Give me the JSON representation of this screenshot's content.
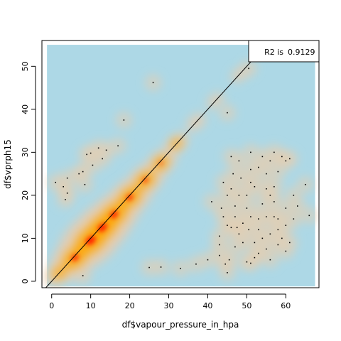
{
  "chart_data": {
    "type": "scatter",
    "subtype": "smoothed-density-scatter",
    "title": "",
    "xlabel": "df$vapour_pressure_in_hpa",
    "ylabel": "df$vprph15",
    "xlim": [
      -2.5,
      68.5
    ],
    "ylim": [
      -1.5,
      56
    ],
    "x_ticks": [
      0,
      10,
      20,
      30,
      40,
      50,
      60
    ],
    "y_ticks": [
      0,
      10,
      20,
      30,
      40,
      50
    ],
    "grid": false,
    "background_color": "#ADD8E6",
    "density_colors": [
      "#ADD8E6",
      "#E5CDB0",
      "#FFA500",
      "#FF0000"
    ],
    "point_color": "#000000",
    "annotation": {
      "position": "top-right",
      "label": "R2 is",
      "value": "0.9129"
    },
    "reference_line": {
      "type": "identity",
      "slope": 1,
      "intercept": 0
    },
    "density_ridge": [
      {
        "x": 2,
        "y": 2,
        "w": 1.3
      },
      {
        "x": 6,
        "y": 5.5,
        "w": 3.2
      },
      {
        "x": 10,
        "y": 9.5,
        "w": 4.6
      },
      {
        "x": 13,
        "y": 12.5,
        "w": 4.3
      },
      {
        "x": 16,
        "y": 15.5,
        "w": 3.6
      },
      {
        "x": 20,
        "y": 19.5,
        "w": 2.9
      },
      {
        "x": 24,
        "y": 23.5,
        "w": 2.2
      },
      {
        "x": 28,
        "y": 27.5,
        "w": 1.5
      },
      {
        "x": 32,
        "y": 32,
        "w": 0.8
      },
      {
        "x": 37,
        "y": 37,
        "w": 0.4
      },
      {
        "x": 42,
        "y": 42,
        "w": 0.2
      },
      {
        "x": 48,
        "y": 48,
        "w": 0.12
      }
    ],
    "scatter_points": [
      {
        "x": 26,
        "y": 46.2
      },
      {
        "x": 18.5,
        "y": 37.5
      },
      {
        "x": 45,
        "y": 39.2
      },
      {
        "x": 50.5,
        "y": 49.5
      },
      {
        "x": 9,
        "y": 29.5
      },
      {
        "x": 10,
        "y": 29.8
      },
      {
        "x": 12,
        "y": 31
      },
      {
        "x": 14,
        "y": 30.5
      },
      {
        "x": 17,
        "y": 31.5
      },
      {
        "x": 13,
        "y": 28.5
      },
      {
        "x": 10.5,
        "y": 27
      },
      {
        "x": 7,
        "y": 25
      },
      {
        "x": 8,
        "y": 25.5
      },
      {
        "x": 4,
        "y": 24
      },
      {
        "x": 1,
        "y": 23
      },
      {
        "x": 3,
        "y": 22
      },
      {
        "x": 8.5,
        "y": 22.5
      },
      {
        "x": 4,
        "y": 20.5
      },
      {
        "x": 3.5,
        "y": 19
      },
      {
        "x": 8,
        "y": 1.3
      },
      {
        "x": 25,
        "y": 3.2
      },
      {
        "x": 28,
        "y": 3.3
      },
      {
        "x": 33,
        "y": 3
      },
      {
        "x": 37,
        "y": 4
      },
      {
        "x": 40,
        "y": 5
      },
      {
        "x": 43,
        "y": 6
      },
      {
        "x": 45,
        "y": 2
      },
      {
        "x": 45.5,
        "y": 5
      },
      {
        "x": 44.5,
        "y": 4
      },
      {
        "x": 47,
        "y": 8
      },
      {
        "x": 43,
        "y": 8.5
      },
      {
        "x": 49,
        "y": 9
      },
      {
        "x": 50,
        "y": 4.5
      },
      {
        "x": 51,
        "y": 4.2
      },
      {
        "x": 52,
        "y": 5.5
      },
      {
        "x": 53,
        "y": 6.5
      },
      {
        "x": 56,
        "y": 5
      },
      {
        "x": 55,
        "y": 7.5
      },
      {
        "x": 58,
        "y": 8.5
      },
      {
        "x": 60,
        "y": 7
      },
      {
        "x": 54,
        "y": 10
      },
      {
        "x": 48,
        "y": 11
      },
      {
        "x": 46,
        "y": 12.5
      },
      {
        "x": 43,
        "y": 10.5
      },
      {
        "x": 45,
        "y": 13
      },
      {
        "x": 47.5,
        "y": 12.5
      },
      {
        "x": 49,
        "y": 13.5
      },
      {
        "x": 51,
        "y": 15
      },
      {
        "x": 53,
        "y": 14.5
      },
      {
        "x": 55,
        "y": 15
      },
      {
        "x": 57,
        "y": 15
      },
      {
        "x": 58,
        "y": 14.5
      },
      {
        "x": 60,
        "y": 13
      },
      {
        "x": 62,
        "y": 14.5
      },
      {
        "x": 66,
        "y": 15.3
      },
      {
        "x": 63,
        "y": 17.5
      },
      {
        "x": 60,
        "y": 17
      },
      {
        "x": 57,
        "y": 18.5
      },
      {
        "x": 54,
        "y": 18
      },
      {
        "x": 50,
        "y": 17
      },
      {
        "x": 47,
        "y": 17.5
      },
      {
        "x": 43.5,
        "y": 17
      },
      {
        "x": 41,
        "y": 18.5
      },
      {
        "x": 45,
        "y": 20
      },
      {
        "x": 46,
        "y": 21.5
      },
      {
        "x": 48,
        "y": 20
      },
      {
        "x": 50,
        "y": 20
      },
      {
        "x": 52,
        "y": 22
      },
      {
        "x": 55,
        "y": 21.5
      },
      {
        "x": 57,
        "y": 22
      },
      {
        "x": 56,
        "y": 20
      },
      {
        "x": 51,
        "y": 23
      },
      {
        "x": 48.5,
        "y": 24
      },
      {
        "x": 44,
        "y": 23
      },
      {
        "x": 46.5,
        "y": 25
      },
      {
        "x": 51,
        "y": 26
      },
      {
        "x": 53,
        "y": 26.5
      },
      {
        "x": 55,
        "y": 25
      },
      {
        "x": 58,
        "y": 25.5
      },
      {
        "x": 60,
        "y": 28
      },
      {
        "x": 56,
        "y": 28
      },
      {
        "x": 54,
        "y": 29
      },
      {
        "x": 51,
        "y": 30
      },
      {
        "x": 48,
        "y": 28
      },
      {
        "x": 46,
        "y": 29
      },
      {
        "x": 57,
        "y": 30
      },
      {
        "x": 59,
        "y": 29
      },
      {
        "x": 61,
        "y": 28.5
      },
      {
        "x": 62,
        "y": 20
      },
      {
        "x": 65,
        "y": 22.5
      },
      {
        "x": 58,
        "y": 12
      },
      {
        "x": 56,
        "y": 11
      },
      {
        "x": 52,
        "y": 9
      },
      {
        "x": 47,
        "y": 15
      },
      {
        "x": 44,
        "y": 15
      },
      {
        "x": 50.5,
        "y": 12
      },
      {
        "x": 53,
        "y": 12
      },
      {
        "x": 59,
        "y": 10
      },
      {
        "x": 61,
        "y": 9
      }
    ]
  }
}
